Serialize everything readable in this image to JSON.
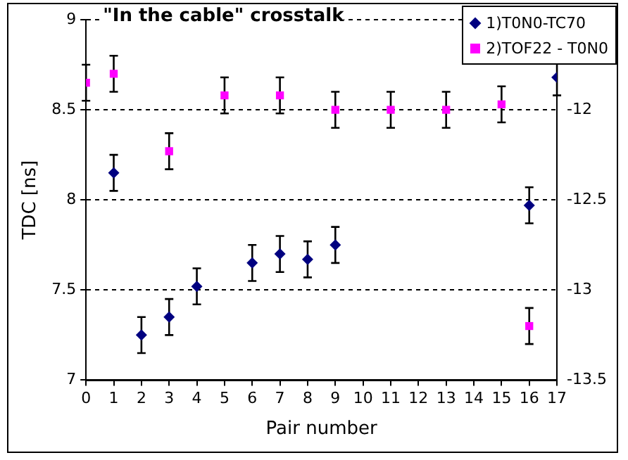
{
  "chart_data": {
    "type": "scatter",
    "title": "\"In the cable\" crosstalk",
    "xlabel": "Pair number",
    "ylabel": "TDC [ns]",
    "xlim": [
      0,
      17
    ],
    "xticks": [
      0,
      1,
      2,
      3,
      4,
      5,
      6,
      7,
      8,
      9,
      10,
      11,
      12,
      13,
      14,
      15,
      16,
      17
    ],
    "ylim": [
      7,
      9
    ],
    "yticks": [
      7,
      7.5,
      8,
      8.5,
      9
    ],
    "y2lim": [
      -13.5,
      -11.5
    ],
    "y2ticks": [
      -13.5,
      -13,
      -12.5,
      -12
    ],
    "grid": "y",
    "legend": "top right",
    "series": [
      {
        "name": "1)T0N0-TC70",
        "color": "#000080",
        "marker": "diamond",
        "x": [
          1,
          2,
          3,
          4,
          6,
          7,
          8,
          9,
          16,
          17
        ],
        "values": [
          8.15,
          7.25,
          7.35,
          7.52,
          7.65,
          7.7,
          7.67,
          7.75,
          7.97,
          8.68
        ],
        "errors": [
          0.1,
          0.1,
          0.1,
          0.1,
          0.1,
          0.1,
          0.1,
          0.1,
          0.1,
          0.1
        ]
      },
      {
        "name": "2)TOF22 - T0N0",
        "color": "#ff00ff",
        "marker": "square",
        "axis": "y2",
        "x": [
          0,
          1,
          3,
          5,
          7,
          9,
          11,
          13,
          15,
          16
        ],
        "values": [
          -11.85,
          -11.8,
          -12.23,
          -11.92,
          -11.92,
          -12,
          -12,
          -12,
          -11.97,
          -13.2
        ],
        "errors": [
          0.1,
          0.1,
          0.1,
          0.1,
          0.1,
          0.1,
          0.1,
          0.1,
          0.1,
          0.1
        ]
      }
    ]
  }
}
